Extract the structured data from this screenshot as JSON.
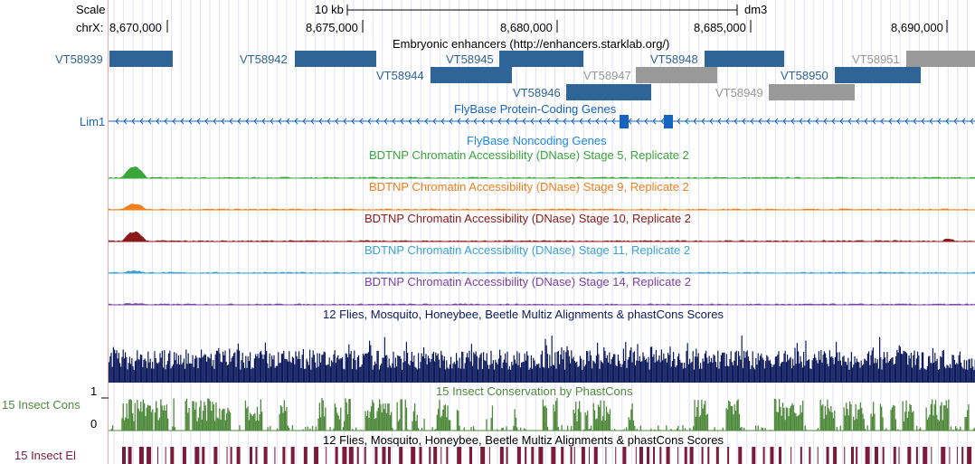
{
  "header": {
    "scale_label": "Scale",
    "chrom_label": "chrX:",
    "scale_bar_label": "10 kb",
    "assembly": "dm3"
  },
  "coordinates": [
    "8,670,000",
    "8,675,000",
    "8,680,000",
    "8,685,000",
    "8,690,000"
  ],
  "tracks": {
    "enhancers": {
      "title": "Embryonic enhancers (http://enhancers.starklab.org/)",
      "items": [
        {
          "name": "VT58939",
          "color": "#2e6496"
        },
        {
          "name": "VT58942",
          "color": "#2e6496"
        },
        {
          "name": "VT58945",
          "color": "#2e6496"
        },
        {
          "name": "VT58944",
          "color": "#2e6496"
        },
        {
          "name": "VT58947",
          "color": "#999999"
        },
        {
          "name": "VT58948",
          "color": "#2e6496"
        },
        {
          "name": "VT58951",
          "color": "#999999"
        },
        {
          "name": "VT58946",
          "color": "#2e6496"
        },
        {
          "name": "VT58949",
          "color": "#999999"
        },
        {
          "name": "VT58950",
          "color": "#2e6496"
        }
      ]
    },
    "flybase_coding": {
      "title": "FlyBase Protein-Coding Genes",
      "gene": "Lim1",
      "color": "#1565c0"
    },
    "flybase_noncoding": {
      "title": "FlyBase Noncoding Genes",
      "color": "#1e88e5"
    },
    "dnase": [
      {
        "title": "BDTNP Chromatin Accessibility (DNase) Stage 5, Replicate 2",
        "color": "#3aa63a"
      },
      {
        "title": "BDTNP Chromatin Accessibility (DNase) Stage 9, Replicate 2",
        "color": "#f07f1e"
      },
      {
        "title": "BDTNP Chromatin Accessibility (DNase) Stage 10, Replicate 2",
        "color": "#8b1a1a"
      },
      {
        "title": "BDTNP Chromatin Accessibility (DNase) Stage 11, Replicate 2",
        "color": "#3ba3d3"
      },
      {
        "title": "BDTNP Chromatin Accessibility (DNase) Stage 14, Replicate 2",
        "color": "#7b3fa8"
      }
    ],
    "multiz": {
      "title": "12 Flies, Mosquito, Honeybee, Beetle Multiz Alignments & phastCons Scores",
      "color": "#0d1b5e"
    },
    "cons": {
      "title": "15 Insect Conservation by PhastCons",
      "side_label": "15 Insect Cons",
      "ymax": "1",
      "ymin": "0",
      "color": "#4f8a3c"
    },
    "elements": {
      "title": "12 Flies, Mosquito, Honeybee, Beetle Multiz Alignments & phastCons Scores",
      "side_label": "15 Insect El",
      "color": "#7b1a3a"
    }
  }
}
